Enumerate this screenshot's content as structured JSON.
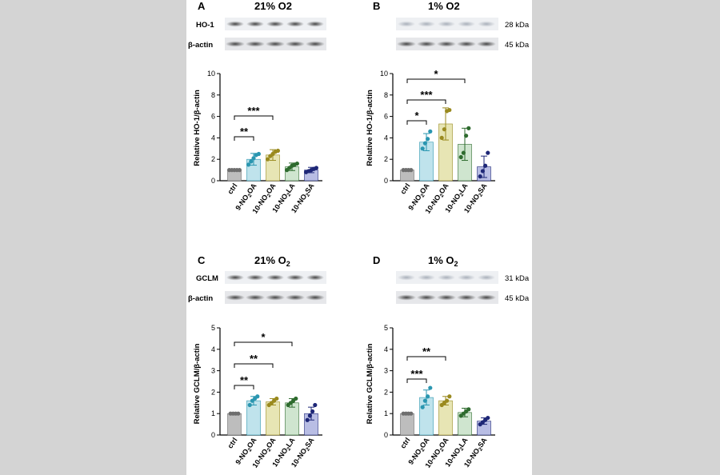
{
  "colors": {
    "ctrl": "#bdbdbd",
    "ctrl_dot": "#6e6e6e",
    "nitro_oa9": "#bfe3ec",
    "nitro_oa9_dot": "#2a96b0",
    "nitro_oa10": "#e7e5b4",
    "nitro_oa10_dot": "#9a8a1f",
    "nitro_la10": "#cfe5cf",
    "nitro_la10_dot": "#2e6b2e",
    "nitro_sa10": "#b8bde4",
    "nitro_sa10_dot": "#1e2777"
  },
  "chart_data": [
    {
      "type": "bar",
      "panel": "A",
      "title": "21% O2",
      "blot": {
        "target_label": "HO-1",
        "loading_label": "β-actin",
        "target_kda": "",
        "loading_kda": ""
      },
      "ylabel": "Relative HO-1/β-actin",
      "ylim": [
        0,
        10
      ],
      "yticks": [
        0,
        2,
        4,
        6,
        8,
        10
      ],
      "categories": [
        {
          "main": "ctrl",
          "sub": "",
          "post": ""
        },
        {
          "main": "9-NO",
          "sub": "2",
          "post": "OA"
        },
        {
          "main": "10-NO",
          "sub": "2",
          "post": "OA"
        },
        {
          "main": "10-NO",
          "sub": "2",
          "post": "LA"
        },
        {
          "main": "10-NO",
          "sub": "2",
          "post": "SA"
        }
      ],
      "values": [
        1.0,
        2.0,
        2.4,
        1.3,
        1.0
      ],
      "errors": [
        0.05,
        0.55,
        0.5,
        0.35,
        0.25
      ],
      "points": [
        [
          1,
          1,
          1,
          1,
          1
        ],
        [
          1.5,
          1.8,
          2.1,
          2.4,
          2.5
        ],
        [
          2.0,
          2.3,
          2.5,
          2.7,
          2.8
        ],
        [
          1.0,
          1.2,
          1.4,
          1.5,
          1.6
        ],
        [
          0.8,
          0.9,
          1.0,
          1.1,
          1.2
        ]
      ],
      "significance": [
        {
          "from": 0,
          "to": 1,
          "label": "**",
          "level": 1
        },
        {
          "from": 0,
          "to": 2,
          "label": "***",
          "level": 2
        }
      ]
    },
    {
      "type": "bar",
      "panel": "B",
      "title": "1% O2",
      "blot": {
        "target_label": "",
        "loading_label": "",
        "target_kda": "28 kDa",
        "loading_kda": "45 kDa"
      },
      "ylabel": "Relative HO-1/β-actin",
      "ylim": [
        0,
        10
      ],
      "yticks": [
        0,
        2,
        4,
        6,
        8,
        10
      ],
      "categories": [
        {
          "main": "ctrl",
          "sub": "",
          "post": ""
        },
        {
          "main": "9-NO",
          "sub": "2",
          "post": "OA"
        },
        {
          "main": "10-NO",
          "sub": "2",
          "post": "OA"
        },
        {
          "main": "10-NO",
          "sub": "2",
          "post": "LA"
        },
        {
          "main": "10-NO",
          "sub": "2",
          "post": "SA"
        }
      ],
      "values": [
        1.0,
        3.6,
        5.3,
        3.4,
        1.3
      ],
      "errors": [
        0.05,
        0.8,
        1.5,
        1.5,
        1.0
      ],
      "points": [
        [
          1,
          1,
          1,
          1
        ],
        [
          3.0,
          3.5,
          3.9,
          4.6
        ],
        [
          4.0,
          4.8,
          6.5,
          6.6
        ],
        [
          2.2,
          2.6,
          4.2,
          4.9
        ],
        [
          0.4,
          0.9,
          1.4,
          2.6
        ]
      ],
      "significance": [
        {
          "from": 0,
          "to": 1,
          "label": "*",
          "level": 1
        },
        {
          "from": 0,
          "to": 2,
          "label": "***",
          "level": 2
        },
        {
          "from": 0,
          "to": 3,
          "label": "*",
          "level": 3
        }
      ]
    },
    {
      "type": "bar",
      "panel": "C",
      "title": "21% O",
      "title_sub": "2",
      "blot": {
        "target_label": "GCLM",
        "loading_label": "β-actin",
        "target_kda": "",
        "loading_kda": ""
      },
      "ylabel": "Relative GCLM/β-actin",
      "ylim": [
        0,
        5
      ],
      "yticks": [
        0,
        1,
        2,
        3,
        4,
        5
      ],
      "categories": [
        {
          "main": "ctrl",
          "sub": "",
          "post": ""
        },
        {
          "main": "9-NO",
          "sub": "2",
          "post": "OA"
        },
        {
          "main": "10-NO",
          "sub": "2",
          "post": "OA"
        },
        {
          "main": "10-NO",
          "sub": "2",
          "post": "LA"
        },
        {
          "main": "10-NO",
          "sub": "2",
          "post": "SA"
        }
      ],
      "values": [
        1.0,
        1.6,
        1.55,
        1.5,
        1.0
      ],
      "errors": [
        0.03,
        0.2,
        0.15,
        0.2,
        0.3
      ],
      "points": [
        [
          1,
          1,
          1,
          1
        ],
        [
          1.4,
          1.6,
          1.7,
          1.8
        ],
        [
          1.4,
          1.5,
          1.6,
          1.7
        ],
        [
          1.4,
          1.5,
          1.6,
          1.7
        ],
        [
          0.7,
          0.9,
          1.1,
          1.4
        ]
      ],
      "significance": [
        {
          "from": 0,
          "to": 1,
          "label": "**",
          "level": 1
        },
        {
          "from": 0,
          "to": 2,
          "label": "**",
          "level": 2
        },
        {
          "from": 0,
          "to": 3,
          "label": "*",
          "level": 3
        }
      ]
    },
    {
      "type": "bar",
      "panel": "D",
      "title": "1% O",
      "title_sub": "2",
      "blot": {
        "target_label": "",
        "loading_label": "",
        "target_kda": "31 kDa",
        "loading_kda": "45 kDa"
      },
      "ylabel": "Relative GCLM/β-actin",
      "ylim": [
        0,
        5
      ],
      "yticks": [
        0,
        1,
        2,
        3,
        4,
        5
      ],
      "categories": [
        {
          "main": "ctrl",
          "sub": "",
          "post": ""
        },
        {
          "main": "9-NO",
          "sub": "2",
          "post": "OA"
        },
        {
          "main": "10-NO",
          "sub": "2",
          "post": "OA"
        },
        {
          "main": "10-NO",
          "sub": "2",
          "post": "LA"
        },
        {
          "main": "10-NO",
          "sub": "2",
          "post": "SA"
        }
      ],
      "values": [
        1.0,
        1.75,
        1.6,
        1.05,
        0.65
      ],
      "errors": [
        0.03,
        0.35,
        0.2,
        0.2,
        0.15
      ],
      "points": [
        [
          1,
          1,
          1,
          1
        ],
        [
          1.3,
          1.6,
          1.8,
          2.2
        ],
        [
          1.4,
          1.5,
          1.6,
          1.8
        ],
        [
          0.9,
          1.0,
          1.1,
          1.2
        ],
        [
          0.5,
          0.6,
          0.7,
          0.8
        ]
      ],
      "significance": [
        {
          "from": 0,
          "to": 1,
          "label": "***",
          "level": 1
        },
        {
          "from": 0,
          "to": 2,
          "label": "**",
          "level": 2
        }
      ]
    }
  ]
}
